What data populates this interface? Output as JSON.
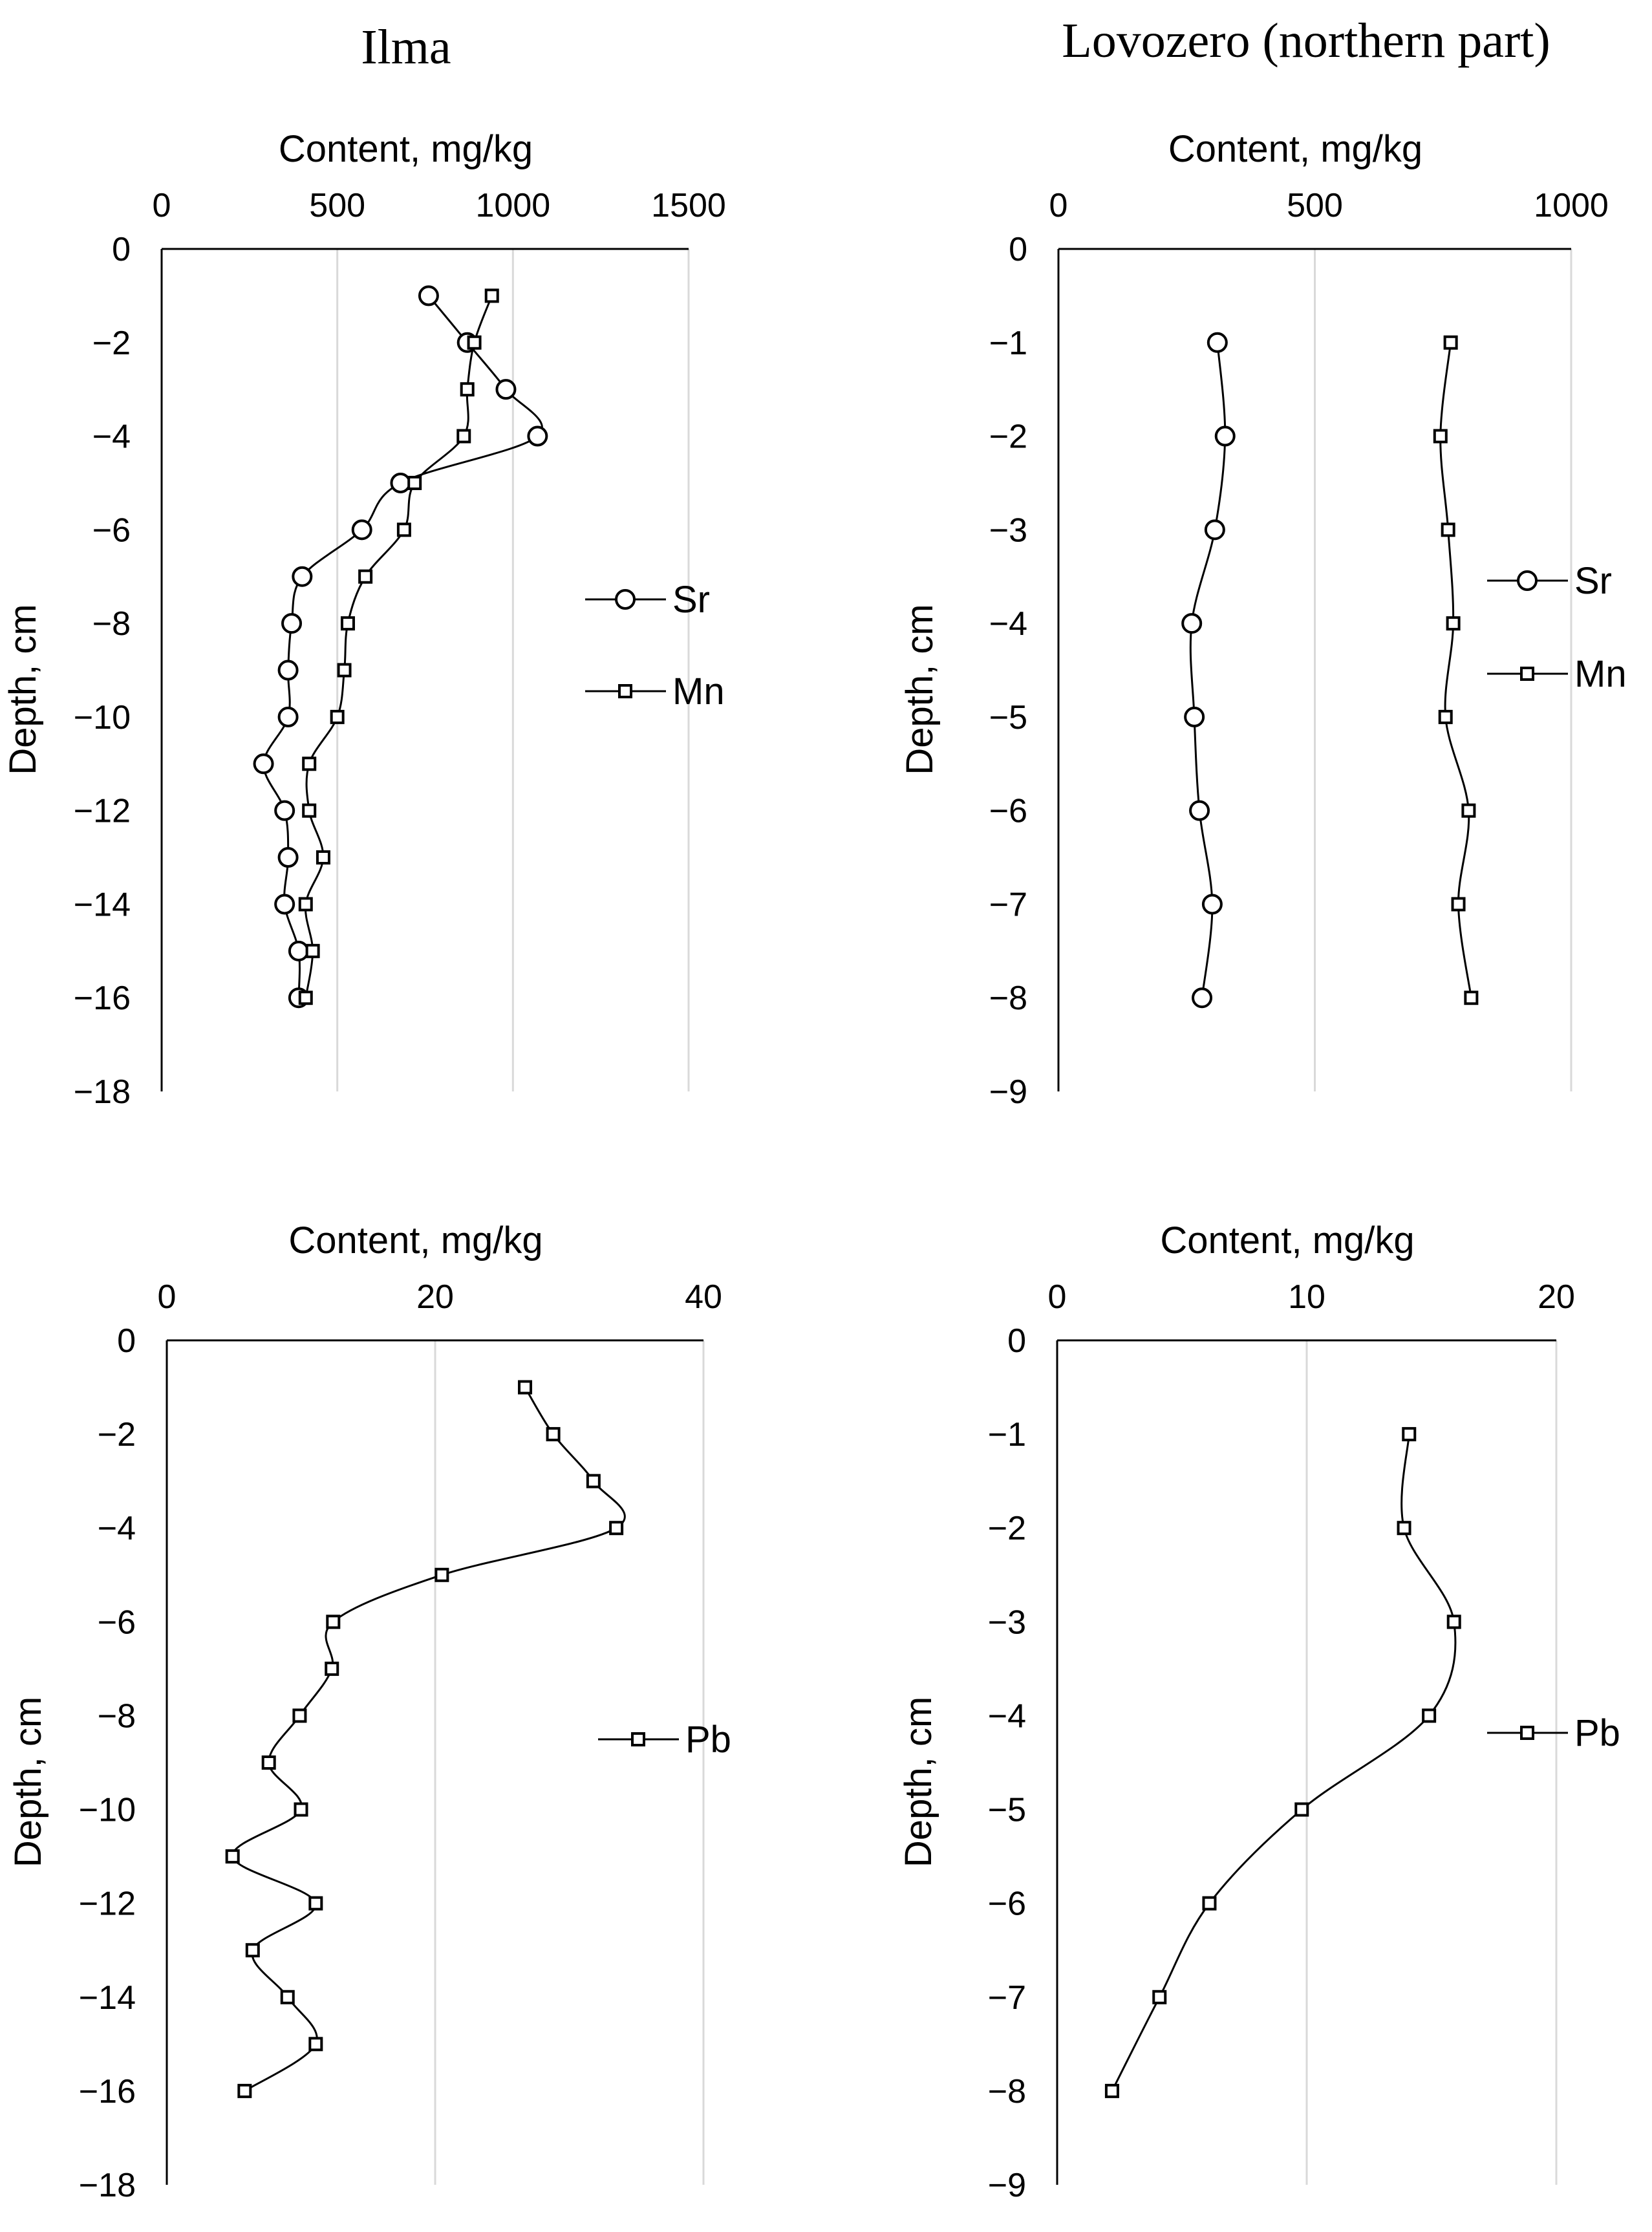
{
  "column_titles": [
    "Ilma",
    "Lovozero (northern part)"
  ],
  "chart_data": [
    {
      "type": "line",
      "id": "ilma-sr-mn",
      "column": "Ilma",
      "xlabel": "Content, mg/kg",
      "ylabel": "Depth, cm",
      "xlim": [
        0,
        1500
      ],
      "xticks": [
        0,
        500,
        1000,
        1500
      ],
      "ylim": [
        -18,
        0
      ],
      "yticks": [
        0,
        -2,
        -4,
        -6,
        -8,
        -10,
        -12,
        -14,
        -16,
        -18
      ],
      "grid": true,
      "legend_position": "right",
      "series": [
        {
          "name": "Sr",
          "marker": "circle",
          "x": [
            760,
            870,
            980,
            1070,
            680,
            570,
            400,
            370,
            360,
            360,
            290,
            350,
            360,
            350,
            390,
            390
          ],
          "y": [
            -1,
            -2,
            -3,
            -4,
            -5,
            -6,
            -7,
            -8,
            -9,
            -10,
            -11,
            -12,
            -13,
            -14,
            -15,
            -16
          ]
        },
        {
          "name": "Mn",
          "marker": "square",
          "x": [
            940,
            890,
            870,
            860,
            720,
            690,
            580,
            530,
            520,
            500,
            420,
            420,
            460,
            410,
            430,
            410
          ],
          "y": [
            -1,
            -2,
            -3,
            -4,
            -5,
            -6,
            -7,
            -8,
            -9,
            -10,
            -11,
            -12,
            -13,
            -14,
            -15,
            -16
          ]
        }
      ]
    },
    {
      "type": "line",
      "id": "lovozero-sr-mn",
      "column": "Lovozero (northern part)",
      "xlabel": "Content, mg/kg",
      "ylabel": "Depth, cm",
      "xlim": [
        0,
        1000
      ],
      "xticks": [
        0,
        500,
        1000
      ],
      "ylim": [
        -9,
        0
      ],
      "yticks": [
        0,
        -1,
        -2,
        -3,
        -4,
        -5,
        -6,
        -7,
        -8,
        -9
      ],
      "grid": true,
      "legend_position": "right",
      "series": [
        {
          "name": "Sr",
          "marker": "circle",
          "x": [
            310,
            325,
            305,
            260,
            265,
            275,
            300,
            280
          ],
          "y": [
            -1,
            -2,
            -3,
            -4,
            -5,
            -6,
            -7,
            -8
          ]
        },
        {
          "name": "Mn",
          "marker": "square",
          "x": [
            765,
            745,
            760,
            770,
            755,
            800,
            780,
            805
          ],
          "y": [
            -1,
            -2,
            -3,
            -4,
            -5,
            -6,
            -7,
            -8
          ]
        }
      ]
    },
    {
      "type": "line",
      "id": "ilma-pb",
      "column": "Ilma",
      "xlabel": "Content, mg/kg",
      "ylabel": "Depth, cm",
      "xlim": [
        0,
        40
      ],
      "xticks": [
        0,
        20,
        40
      ],
      "ylim": [
        -18,
        0
      ],
      "yticks": [
        0,
        -2,
        -4,
        -6,
        -8,
        -10,
        -12,
        -14,
        -16,
        -18
      ],
      "grid": true,
      "legend_position": "right",
      "series": [
        {
          "name": "Pb",
          "marker": "square",
          "x": [
            26.7,
            28.8,
            31.8,
            33.5,
            20.5,
            12.4,
            12.3,
            9.9,
            7.6,
            10.0,
            4.9,
            11.1,
            6.4,
            9.0,
            11.1,
            5.8
          ],
          "y": [
            -1,
            -2,
            -3,
            -4,
            -5,
            -6,
            -7,
            -8,
            -9,
            -10,
            -11,
            -12,
            -13,
            -14,
            -15,
            -16
          ]
        }
      ]
    },
    {
      "type": "line",
      "id": "lovozero-pb",
      "column": "Lovozero (northern part)",
      "xlabel": "Content, mg/kg",
      "ylabel": "Depth, cm",
      "xlim": [
        0,
        20
      ],
      "xticks": [
        0,
        10,
        20
      ],
      "ylim": [
        -9,
        0
      ],
      "yticks": [
        0,
        -1,
        -2,
        -3,
        -4,
        -5,
        -6,
        -7,
        -8,
        -9
      ],
      "grid": true,
      "legend_position": "right",
      "series": [
        {
          "name": "Pb",
          "marker": "square",
          "x": [
            14.1,
            13.9,
            15.9,
            14.9,
            9.8,
            6.1,
            4.1,
            2.2
          ],
          "y": [
            -1,
            -2,
            -3,
            -4,
            -5,
            -6,
            -7,
            -8
          ]
        }
      ]
    }
  ]
}
